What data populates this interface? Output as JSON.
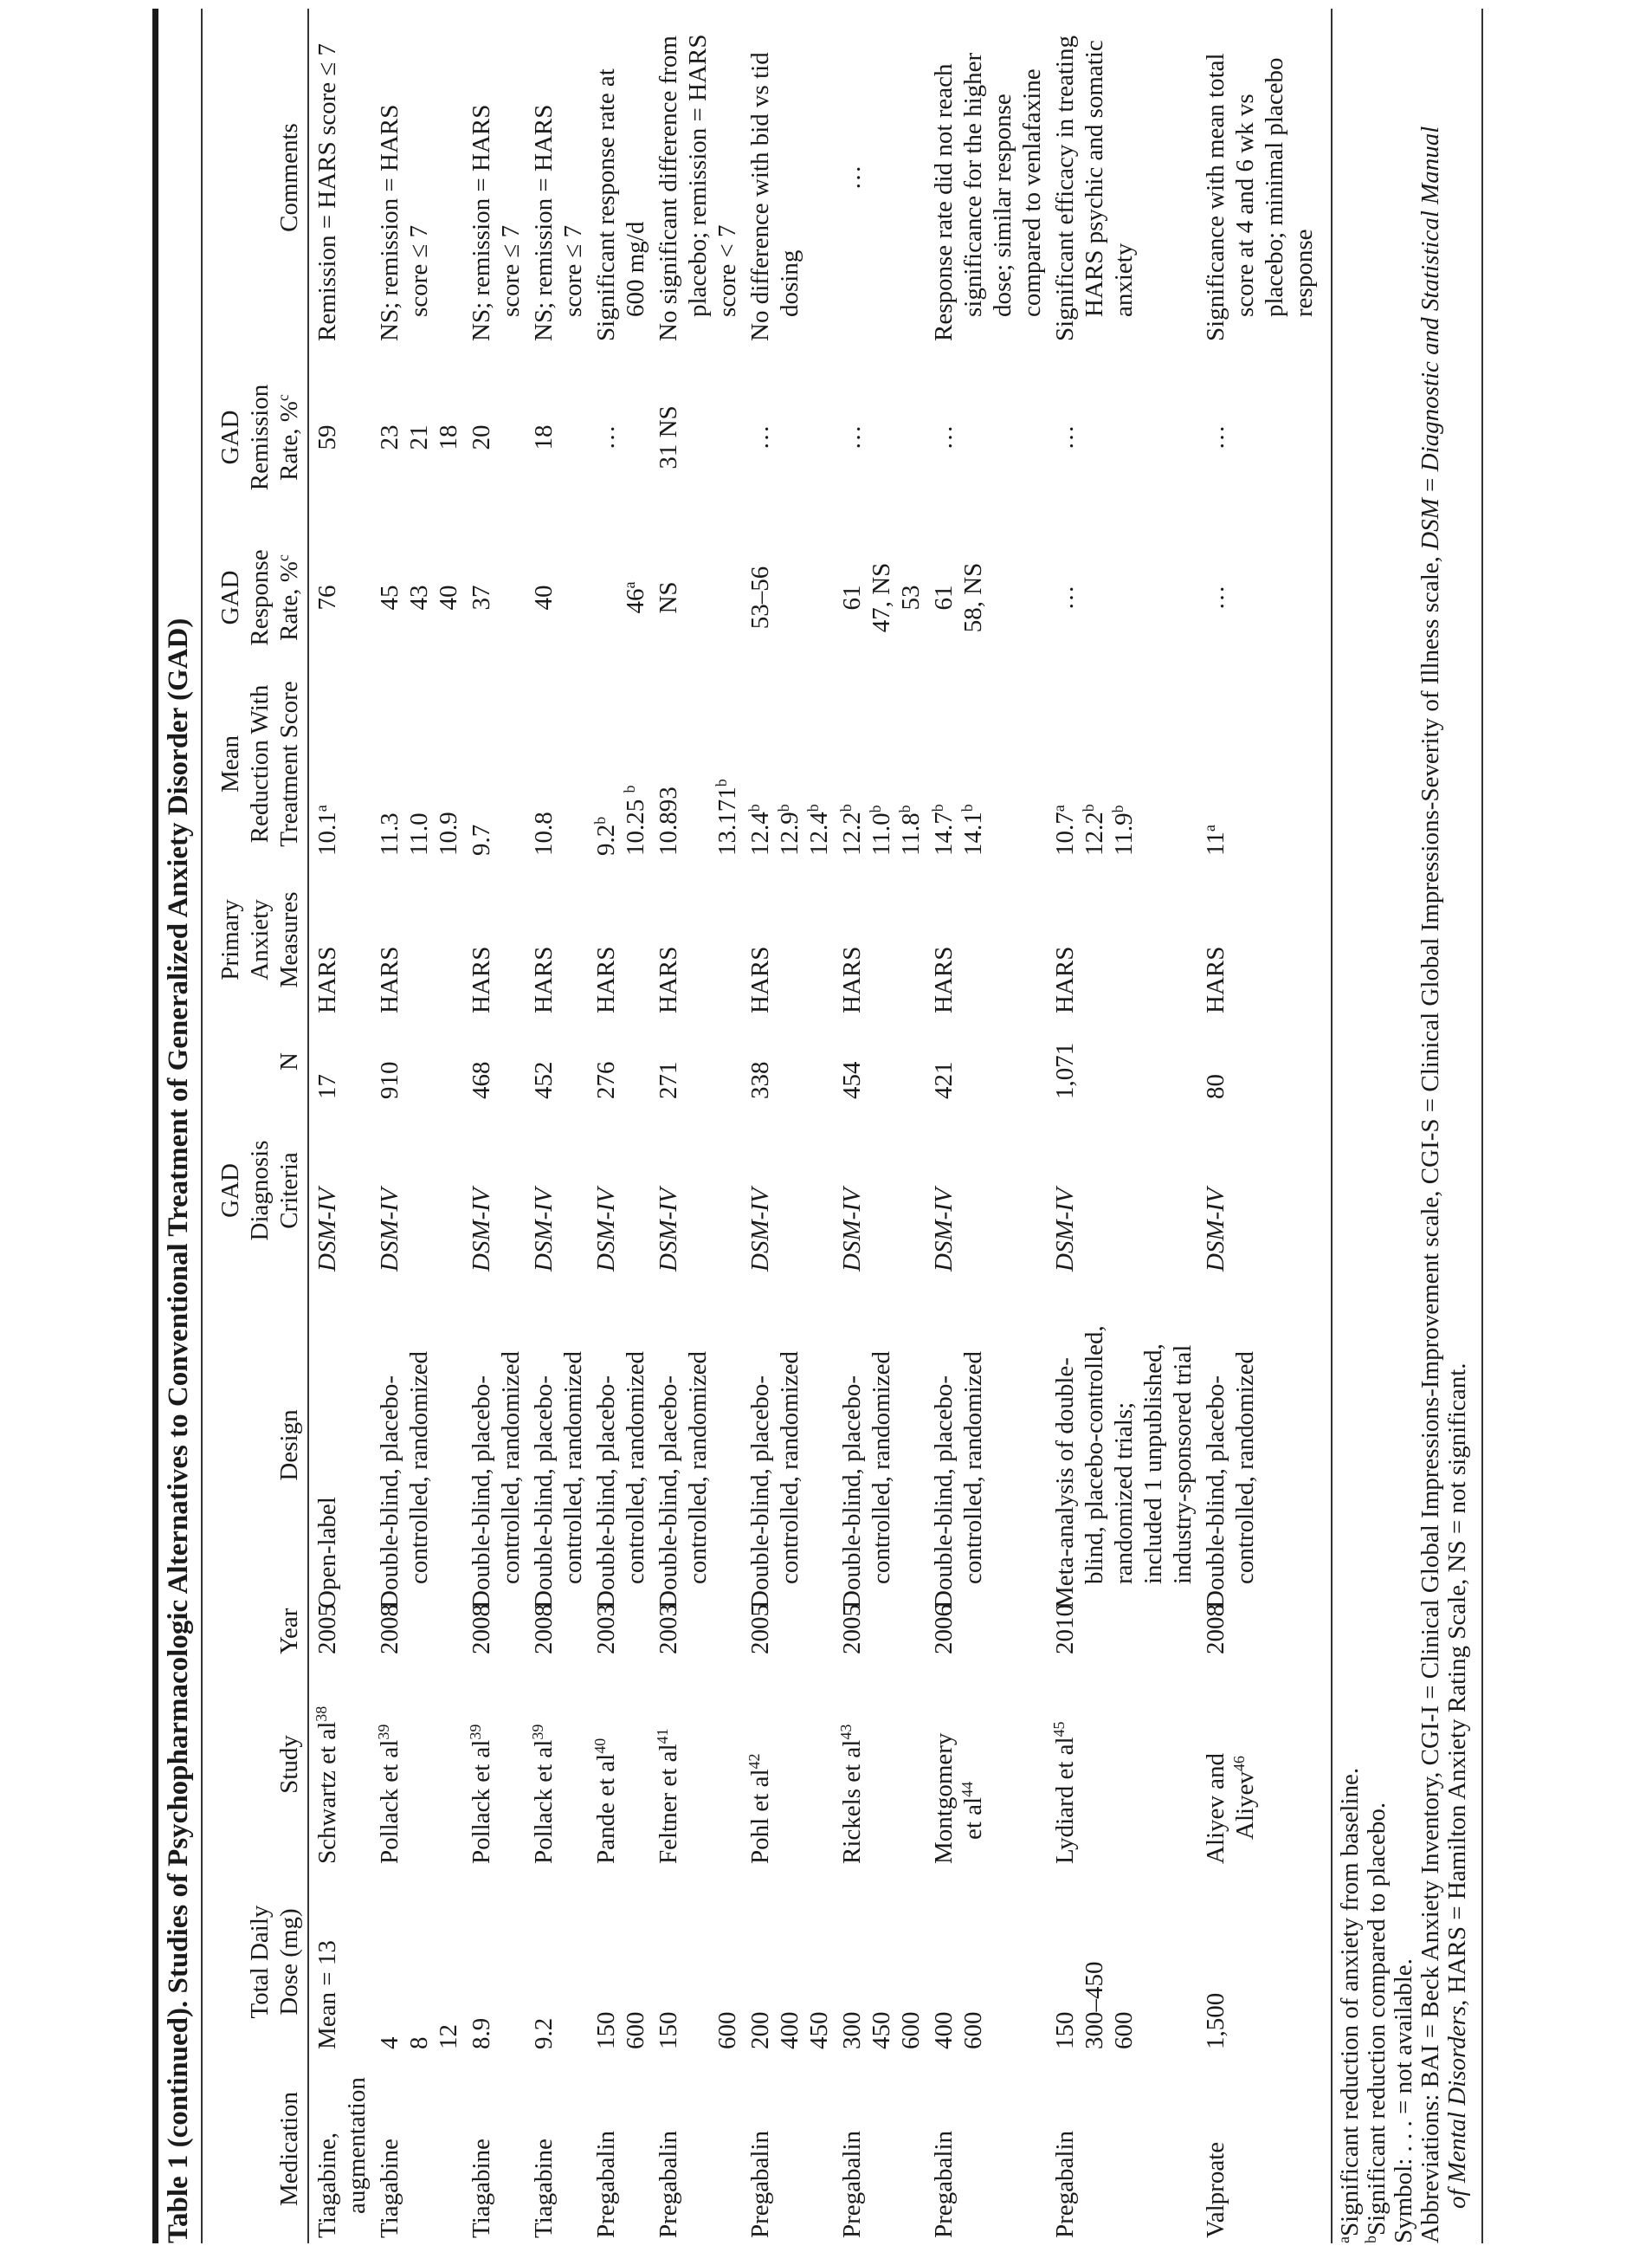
{
  "title": "Table 1 (continued). Studies of Psychopharmacologic Alternatives to Conventional Treatment of Generalized Anxiety Disorder (GAD)",
  "headers": [
    {
      "key": "medication",
      "lines": [
        {
          "t": "Medication"
        }
      ]
    },
    {
      "key": "dose",
      "lines": [
        {
          "t": "Total Daily"
        },
        {
          "t": "Dose (mg)"
        }
      ]
    },
    {
      "key": "study",
      "lines": [
        {
          "t": "Study"
        }
      ]
    },
    {
      "key": "year",
      "lines": [
        {
          "t": "Year"
        }
      ]
    },
    {
      "key": "design",
      "lines": [
        {
          "t": "Design"
        }
      ]
    },
    {
      "key": "criteria",
      "lines": [
        {
          "t": "GAD"
        },
        {
          "t": "Diagnosis"
        },
        {
          "t": "Criteria"
        }
      ]
    },
    {
      "key": "n",
      "lines": [
        {
          "t": "N"
        }
      ]
    },
    {
      "key": "measures",
      "lines": [
        {
          "t": "Primary"
        },
        {
          "t": "Anxiety"
        },
        {
          "t": "Measures"
        }
      ]
    },
    {
      "key": "reduction",
      "lines": [
        {
          "t": "Mean"
        },
        {
          "t": "Reduction With"
        },
        {
          "t": "Treatment Score"
        }
      ]
    },
    {
      "key": "response",
      "lines": [
        {
          "t": "GAD"
        },
        {
          "t": "Response"
        },
        {
          "t": "Rate, %",
          "s": "c"
        }
      ]
    },
    {
      "key": "remission",
      "lines": [
        {
          "t": "GAD"
        },
        {
          "t": "Remission"
        },
        {
          "t": "Rate, %",
          "s": "c"
        }
      ]
    },
    {
      "key": "comments",
      "lines": [
        {
          "t": "Comments"
        }
      ]
    }
  ],
  "rows": [
    {
      "medication": [
        {
          "t": "Tiagabine,"
        },
        {
          "t": "augmentation"
        }
      ],
      "dose": [
        {
          "t": "Mean = 13"
        }
      ],
      "study": [
        {
          "t": "Schwartz et al",
          "s": "38"
        }
      ],
      "year": [
        {
          "t": "2005"
        }
      ],
      "design": [
        {
          "t": "Open-label"
        }
      ],
      "criteria": [
        {
          "t": "DSM-IV"
        }
      ],
      "n": [
        {
          "t": "17"
        }
      ],
      "measures": [
        {
          "t": "HARS"
        }
      ],
      "reduction": [
        {
          "t": "10.1",
          "s": "a"
        }
      ],
      "response": [
        {
          "t": "76"
        }
      ],
      "remission": [
        {
          "t": "59"
        }
      ],
      "comments": [
        {
          "t": "Remission = HARS score ≤ 7"
        }
      ]
    },
    {
      "medication": [
        {
          "t": "Tiagabine"
        }
      ],
      "dose": [
        {
          "t": "4"
        },
        {
          "t": "8"
        },
        {
          "t": "12"
        }
      ],
      "study": [
        {
          "t": "Pollack et al",
          "s": "39"
        }
      ],
      "year": [
        {
          "t": "2008"
        }
      ],
      "design": [
        {
          "t": "Double-blind, placebo-"
        },
        {
          "t": "controlled, randomized"
        }
      ],
      "criteria": [
        {
          "t": "DSM-IV"
        }
      ],
      "n": [
        {
          "t": "910"
        }
      ],
      "measures": [
        {
          "t": "HARS"
        }
      ],
      "reduction": [
        {
          "t": "11.3"
        },
        {
          "t": "11.0"
        },
        {
          "t": "10.9"
        }
      ],
      "response": [
        {
          "t": "45"
        },
        {
          "t": "43"
        },
        {
          "t": "40"
        }
      ],
      "remission": [
        {
          "t": "23"
        },
        {
          "t": "21"
        },
        {
          "t": "18"
        }
      ],
      "comments": [
        {
          "t": "NS; remission = HARS"
        },
        {
          "t": "score ≤ 7"
        }
      ]
    },
    {
      "medication": [
        {
          "t": "Tiagabine"
        }
      ],
      "dose": [
        {
          "t": "8.9"
        }
      ],
      "study": [
        {
          "t": "Pollack et al",
          "s": "39"
        }
      ],
      "year": [
        {
          "t": "2008"
        }
      ],
      "design": [
        {
          "t": "Double-blind, placebo-"
        },
        {
          "t": "controlled, randomized"
        }
      ],
      "criteria": [
        {
          "t": "DSM-IV"
        }
      ],
      "n": [
        {
          "t": "468"
        }
      ],
      "measures": [
        {
          "t": "HARS"
        }
      ],
      "reduction": [
        {
          "t": "9.7"
        }
      ],
      "response": [
        {
          "t": "37"
        }
      ],
      "remission": [
        {
          "t": "20"
        }
      ],
      "comments": [
        {
          "t": "NS; remission = HARS"
        },
        {
          "t": "score ≤ 7"
        }
      ]
    },
    {
      "medication": [
        {
          "t": "Tiagabine"
        }
      ],
      "dose": [
        {
          "t": "9.2"
        }
      ],
      "study": [
        {
          "t": "Pollack et al",
          "s": "39"
        }
      ],
      "year": [
        {
          "t": "2008"
        }
      ],
      "design": [
        {
          "t": "Double-blind, placebo-"
        },
        {
          "t": "controlled, randomized"
        }
      ],
      "criteria": [
        {
          "t": "DSM-IV"
        }
      ],
      "n": [
        {
          "t": "452"
        }
      ],
      "measures": [
        {
          "t": "HARS"
        }
      ],
      "reduction": [
        {
          "t": "10.8"
        }
      ],
      "response": [
        {
          "t": "40"
        }
      ],
      "remission": [
        {
          "t": "18"
        }
      ],
      "comments": [
        {
          "t": "NS; remission = HARS"
        },
        {
          "t": "score ≤ 7"
        }
      ]
    },
    {
      "medication": [
        {
          "t": "Pregabalin"
        }
      ],
      "dose": [
        {
          "t": "150"
        },
        {
          "t": "600"
        }
      ],
      "study": [
        {
          "t": "Pande et al",
          "s": "40"
        }
      ],
      "year": [
        {
          "t": "2003"
        }
      ],
      "design": [
        {
          "t": "Double-blind, placebo-"
        },
        {
          "t": "controlled, randomized"
        }
      ],
      "criteria": [
        {
          "t": "DSM-IV"
        }
      ],
      "n": [
        {
          "t": "276"
        }
      ],
      "measures": [
        {
          "t": "HARS"
        }
      ],
      "reduction": [
        {
          "t": "9.2",
          "s": "b"
        },
        {
          "t": "10.25 ",
          "s": "b"
        }
      ],
      "response": [
        {
          "t": ""
        },
        {
          "t": "46",
          "s": "a"
        }
      ],
      "remission": [
        {
          "t": "…"
        }
      ],
      "comments": [
        {
          "t": "Significant response rate at"
        },
        {
          "t": "600 mg/d"
        }
      ]
    },
    {
      "medication": [
        {
          "t": "Pregabalin"
        }
      ],
      "dose": [
        {
          "t": "150"
        },
        {
          "t": ""
        },
        {
          "t": "600"
        }
      ],
      "study": [
        {
          "t": "Feltner et al",
          "s": "41"
        }
      ],
      "year": [
        {
          "t": "2003"
        }
      ],
      "design": [
        {
          "t": "Double-blind, placebo-"
        },
        {
          "t": "controlled, randomized"
        }
      ],
      "criteria": [
        {
          "t": "DSM-IV"
        }
      ],
      "n": [
        {
          "t": "271"
        }
      ],
      "measures": [
        {
          "t": "HARS"
        }
      ],
      "reduction": [
        {
          "t": "10.893"
        },
        {
          "t": ""
        },
        {
          "t": "13.171",
          "s": "b"
        }
      ],
      "response": [
        {
          "t": "NS"
        }
      ],
      "remission": [
        {
          "t": "31 NS"
        }
      ],
      "comments": [
        {
          "t": "No significant difference from"
        },
        {
          "t": "placebo; remission = HARS"
        },
        {
          "t": "score < 7"
        }
      ]
    },
    {
      "medication": [
        {
          "t": "Pregabalin"
        }
      ],
      "dose": [
        {
          "t": "200"
        },
        {
          "t": "400"
        },
        {
          "t": "450"
        }
      ],
      "study": [
        {
          "t": "Pohl et al",
          "s": "42"
        }
      ],
      "year": [
        {
          "t": "2005"
        }
      ],
      "design": [
        {
          "t": "Double-blind, placebo-"
        },
        {
          "t": "controlled, randomized"
        }
      ],
      "criteria": [
        {
          "t": "DSM-IV"
        }
      ],
      "n": [
        {
          "t": "338"
        }
      ],
      "measures": [
        {
          "t": "HARS"
        }
      ],
      "reduction": [
        {
          "t": "12.4",
          "s": "b"
        },
        {
          "t": "12.9",
          "s": "b"
        },
        {
          "t": "12.4",
          "s": "b"
        }
      ],
      "response": [
        {
          "t": "53–56"
        }
      ],
      "remission": [
        {
          "t": "…"
        }
      ],
      "comments": [
        {
          "t": "No difference with bid vs tid"
        },
        {
          "t": "dosing"
        }
      ]
    },
    {
      "medication": [
        {
          "t": "Pregabalin"
        }
      ],
      "dose": [
        {
          "t": "300"
        },
        {
          "t": "450"
        },
        {
          "t": "600"
        }
      ],
      "study": [
        {
          "t": "Rickels et al",
          "s": "43"
        }
      ],
      "year": [
        {
          "t": "2005"
        }
      ],
      "design": [
        {
          "t": "Double-blind, placebo-"
        },
        {
          "t": "controlled, randomized"
        }
      ],
      "criteria": [
        {
          "t": "DSM-IV"
        }
      ],
      "n": [
        {
          "t": "454"
        }
      ],
      "measures": [
        {
          "t": "HARS"
        }
      ],
      "reduction": [
        {
          "t": "12.2",
          "s": "b"
        },
        {
          "t": "11.0",
          "s": "b"
        },
        {
          "t": "11.8",
          "s": "b"
        }
      ],
      "response": [
        {
          "t": "61"
        },
        {
          "t": "47, NS"
        },
        {
          "t": "53"
        }
      ],
      "remission": [
        {
          "t": "…"
        }
      ],
      "comments": [
        {
          "t": "…",
          "center": true
        }
      ]
    },
    {
      "medication": [
        {
          "t": "Pregabalin"
        }
      ],
      "dose": [
        {
          "t": "400"
        },
        {
          "t": "600"
        }
      ],
      "study": [
        {
          "t": "Montgomery"
        },
        {
          "t": "et al",
          "s": "44"
        }
      ],
      "year": [
        {
          "t": "2006"
        }
      ],
      "design": [
        {
          "t": "Double-blind, placebo-"
        },
        {
          "t": "controlled, randomized"
        }
      ],
      "criteria": [
        {
          "t": "DSM-IV"
        }
      ],
      "n": [
        {
          "t": "421"
        }
      ],
      "measures": [
        {
          "t": "HARS"
        }
      ],
      "reduction": [
        {
          "t": "14.7",
          "s": "b"
        },
        {
          "t": "14.1",
          "s": "b"
        }
      ],
      "response": [
        {
          "t": "61"
        },
        {
          "t": "58, NS"
        }
      ],
      "remission": [
        {
          "t": "…"
        }
      ],
      "comments": [
        {
          "t": "Response rate did not reach"
        },
        {
          "t": "significance for the higher"
        },
        {
          "t": "dose; similar response"
        },
        {
          "t": "compared to venlafaxine"
        }
      ]
    },
    {
      "medication": [
        {
          "t": "Pregabalin"
        }
      ],
      "dose": [
        {
          "t": "150"
        },
        {
          "t": "300–450"
        },
        {
          "t": "600"
        }
      ],
      "study": [
        {
          "t": "Lydiard et al",
          "s": "45"
        }
      ],
      "year": [
        {
          "t": "2010"
        }
      ],
      "design": [
        {
          "t": "Meta-analysis of double-"
        },
        {
          "t": "blind, placebo-controlled,"
        },
        {
          "t": "randomized trials;"
        },
        {
          "t": "included 1 unpublished,"
        },
        {
          "t": "industry-sponsored trial"
        }
      ],
      "criteria": [
        {
          "t": "DSM-IV"
        }
      ],
      "n": [
        {
          "t": "1,071"
        }
      ],
      "measures": [
        {
          "t": "HARS"
        }
      ],
      "reduction": [
        {
          "t": "10.7",
          "s": "a"
        },
        {
          "t": "12.2",
          "s": "b"
        },
        {
          "t": "11.9",
          "s": "b"
        }
      ],
      "response": [
        {
          "t": "…"
        }
      ],
      "remission": [
        {
          "t": "…"
        }
      ],
      "comments": [
        {
          "t": "Significant efficacy in treating"
        },
        {
          "t": "HARS psychic and somatic"
        },
        {
          "t": "anxiety"
        }
      ]
    },
    {
      "medication": [
        {
          "t": "Valproate"
        }
      ],
      "dose": [
        {
          "t": "1,500"
        }
      ],
      "study": [
        {
          "t": "Aliyev and"
        },
        {
          "t": "Aliyev",
          "s": "46"
        }
      ],
      "year": [
        {
          "t": "2008"
        }
      ],
      "design": [
        {
          "t": "Double-blind, placebo-"
        },
        {
          "t": "controlled, randomized"
        }
      ],
      "criteria": [
        {
          "t": "DSM-IV"
        }
      ],
      "n": [
        {
          "t": "80"
        }
      ],
      "measures": [
        {
          "t": "HARS"
        }
      ],
      "reduction": [
        {
          "t": "11",
          "s": "a"
        }
      ],
      "response": [
        {
          "t": "…"
        }
      ],
      "remission": [
        {
          "t": "…"
        }
      ],
      "comments": [
        {
          "t": "Significance with mean total"
        },
        {
          "t": "score at 4 and 6 wk vs"
        },
        {
          "t": "placebo; minimal placebo"
        },
        {
          "t": "response"
        }
      ]
    }
  ],
  "footnotes": [
    {
      "sup": "a",
      "segments": [
        {
          "t": "Significant reduction of anxiety from baseline."
        }
      ]
    },
    {
      "sup": "b",
      "segments": [
        {
          "t": "Significant reduction compared to placebo."
        }
      ]
    },
    {
      "segments": [
        {
          "t": "Symbol: . . . = not available."
        }
      ]
    },
    {
      "segments": [
        {
          "t": "Abbreviations: BAI = Beck Anxiety Inventory, CGI-I = Clinical Global Impressions-Improvement scale, CGI-S = Clinical Global Impressions-Severity of Illness scale, "
        },
        {
          "t": "DSM",
          "i": true
        },
        {
          "t": " = "
        },
        {
          "t": "Diagnostic and Statistical Manual",
          "i": true
        }
      ]
    },
    {
      "indent": true,
      "segments": [
        {
          "t": "of Mental Disorders",
          "i": true
        },
        {
          "t": ", HARS = Hamilton Anxiety Rating Scale, NS = not significant."
        }
      ]
    }
  ]
}
